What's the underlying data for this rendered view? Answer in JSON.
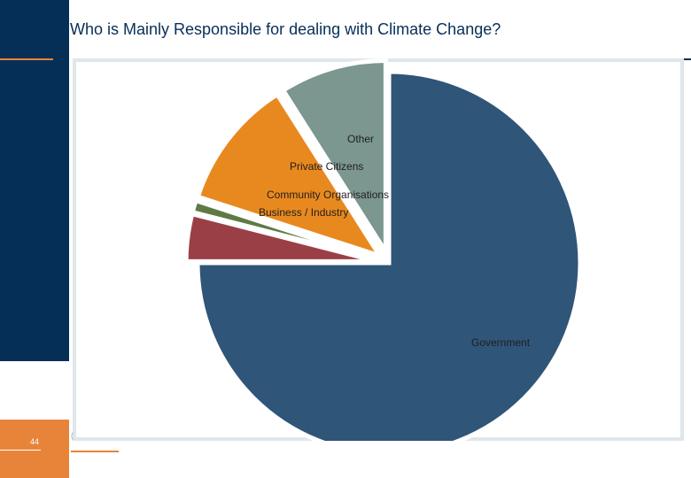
{
  "slide": {
    "title": "Who is Mainly Responsible for dealing with Climate Change?",
    "page_number": "44"
  },
  "colors": {
    "sidebar": "#062f57",
    "accent": "#e8843a"
  },
  "chart_data": {
    "type": "pie",
    "title": "",
    "slices": [
      {
        "label": "Government",
        "value": 75.0,
        "color": "#2f5578",
        "exploded": false
      },
      {
        "label": "Business / Industry",
        "value": 4.0,
        "color": "#9b3f47",
        "exploded": true
      },
      {
        "label": "Community Organisations",
        "value": 1.0,
        "color": "#5f7a43",
        "exploded": true
      },
      {
        "label": "Private Citizens",
        "value": 11.0,
        "color": "#e8891f",
        "exploded": true
      },
      {
        "label": "Other",
        "value": 9.0,
        "color": "#7c9690",
        "exploded": true
      }
    ],
    "legend": "none",
    "labels_on_slices": true
  }
}
